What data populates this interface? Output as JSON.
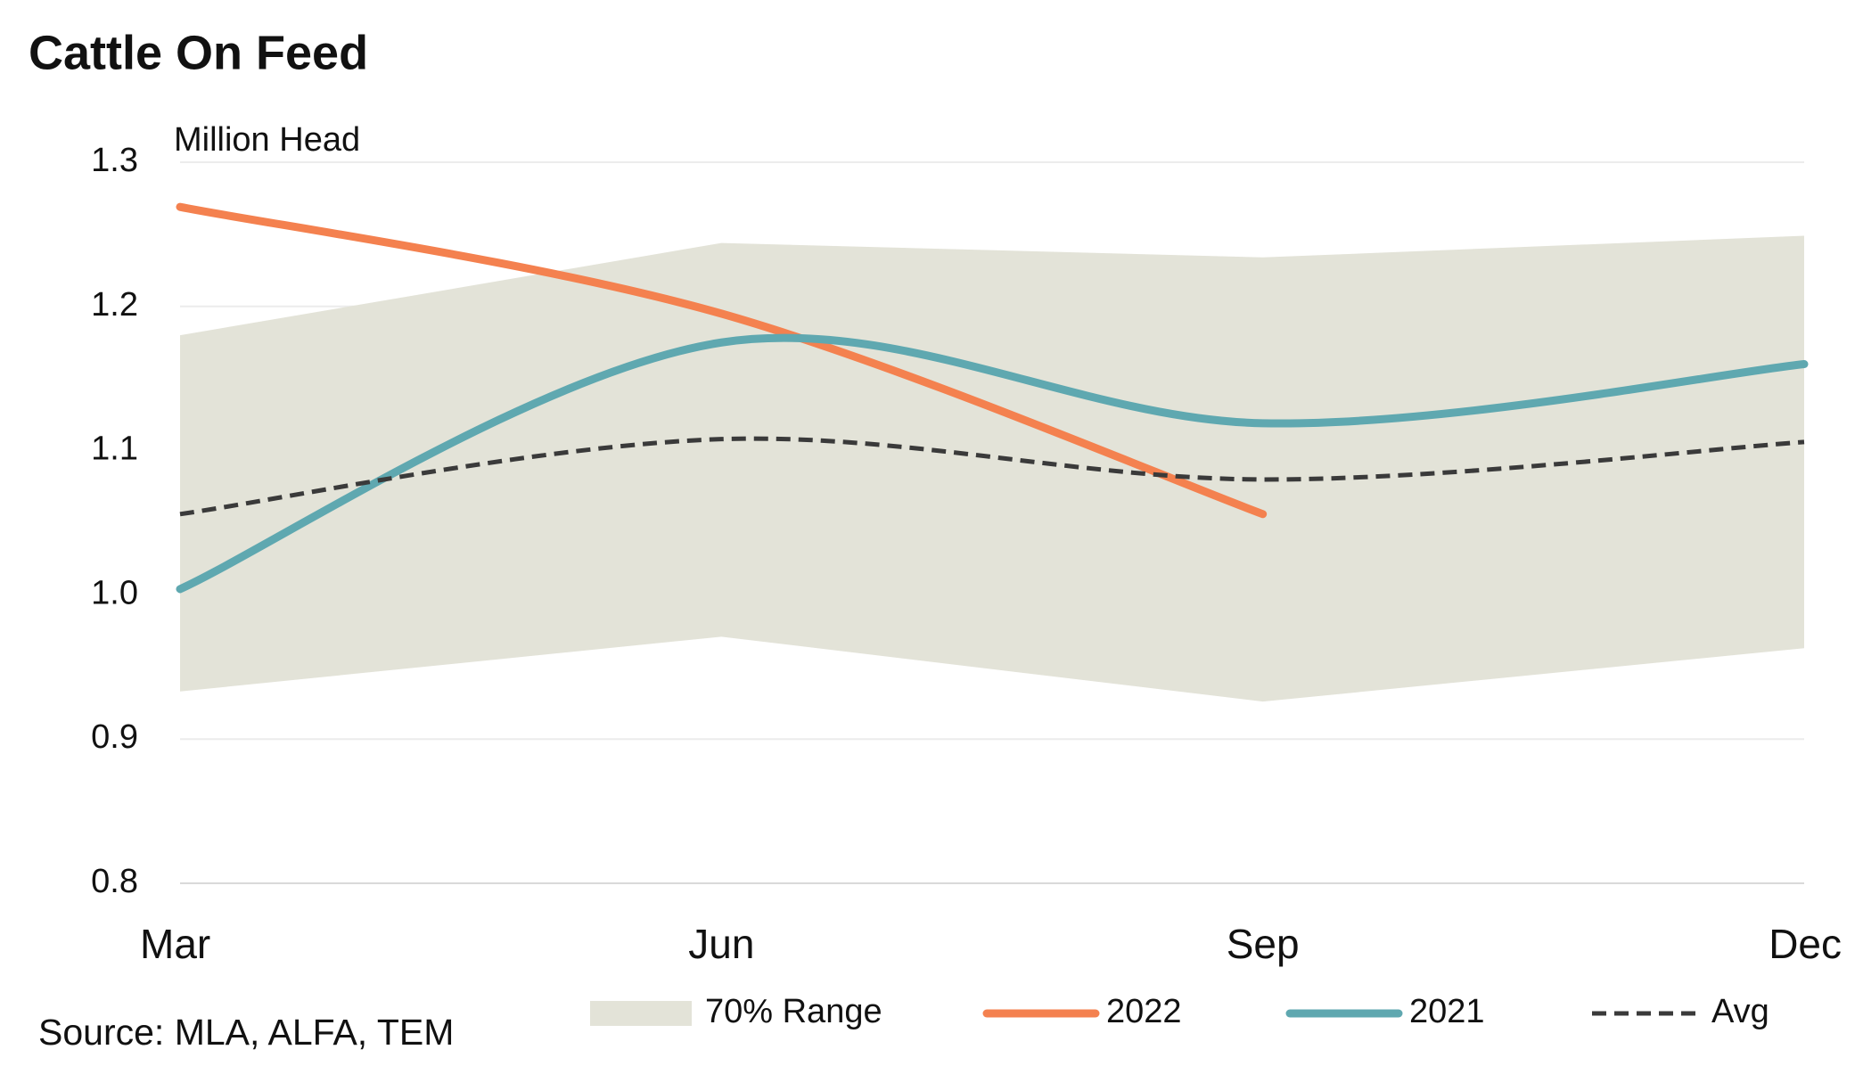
{
  "chart_data": {
    "type": "line",
    "title": "Cattle On Feed",
    "subtitle": "Million Head",
    "source": "Source: MLA, ALFA, TEM",
    "categories": [
      "Mar",
      "Jun",
      "Sep",
      "Dec"
    ],
    "ylim": [
      0.8,
      1.3
    ],
    "yticks": [
      0.8,
      0.9,
      {
        "value": 1,
        "label": "1.0"
      },
      1.1,
      1.2,
      1.3
    ],
    "grid": true,
    "range": {
      "name": "70% Range",
      "color": "#e3e3d8",
      "upper": [
        1.18,
        1.244,
        1.234,
        1.249
      ],
      "lower": [
        0.933,
        0.971,
        0.926,
        0.963
      ]
    },
    "series": [
      {
        "name": "2022",
        "color": "#f4814f",
        "values": [
          1.269,
          1.195,
          1.056,
          null
        ]
      },
      {
        "name": "2021",
        "color": "#5fa8b0",
        "values": [
          1.004,
          1.175,
          1.119,
          1.16
        ]
      },
      {
        "name": "Avg",
        "color": "#3a3a3a",
        "dashed": true,
        "values": [
          1.056,
          1.108,
          1.08,
          1.106
        ]
      }
    ]
  }
}
